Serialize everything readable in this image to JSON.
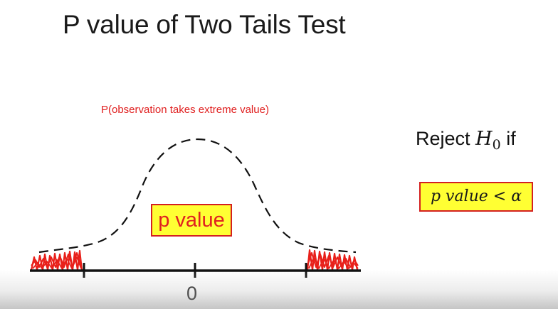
{
  "slide": {
    "title": "P value of Two Tails Test",
    "annotation": "P(observation takes extreme value)",
    "pvalue_label": "p value",
    "tick_label": "0",
    "reject": {
      "prefix": "Reject ",
      "symbol": "H",
      "subscript": "0",
      "suffix": " if"
    },
    "condition": "p value < α"
  },
  "colors": {
    "highlight_fill": "#ffff33",
    "highlight_border": "#d42020",
    "annotation_text": "#e02020",
    "tail_scribble": "#e8201a",
    "curve_stroke": "#111111"
  }
}
